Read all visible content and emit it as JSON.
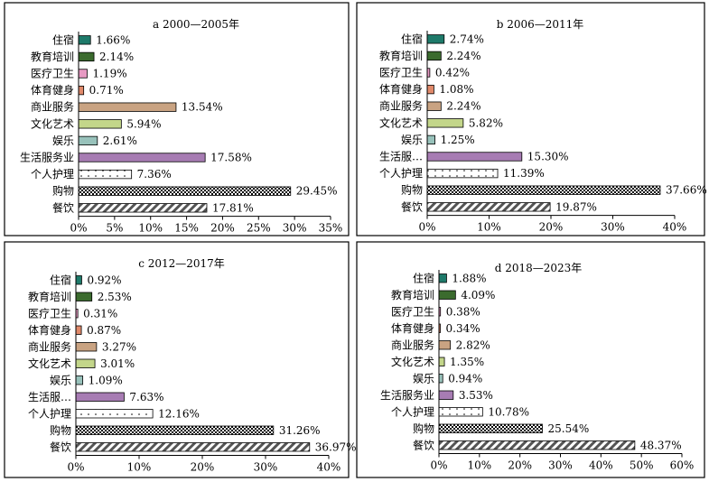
{
  "colors": {
    "住宿": "#1e7a6a",
    "教育培训": "#3b6b2e",
    "医疗卫生": "#e79ac3",
    "体育健身": "#e0896a",
    "商业服务": "#c9a382",
    "文化艺术": "#c3d68a",
    "娱乐": "#98c2bb",
    "生活服务业": "#a77cb3",
    "个人护理": "dots",
    "购物": "checker",
    "餐饮": "hatch"
  },
  "chart_data": [
    {
      "type": "bar",
      "title": "a 2000—2005年",
      "categories": [
        "住宿",
        "教育培训",
        "医疗卫生",
        "体育健身",
        "商业服务",
        "文化艺术",
        "娱乐",
        "生活服务业",
        "个人护理",
        "购物",
        "餐饮"
      ],
      "labels": [
        "住宿",
        "教育培训",
        "医疗卫生",
        "体育健身",
        "商业服务",
        "文化艺术",
        "娱乐",
        "生活服务业",
        "个人护理",
        "购物",
        "餐饮"
      ],
      "values": [
        1.66,
        2.14,
        1.19,
        0.71,
        13.54,
        5.94,
        2.61,
        17.58,
        7.36,
        29.45,
        17.81
      ],
      "value_labels": [
        "1.66%",
        "2.14%",
        "1.19%",
        "0.71%",
        "13.54%",
        "5.94%",
        "2.61%",
        "17.58%",
        "7.36%",
        "29.45%",
        "17.81%"
      ],
      "xlim": [
        0,
        35
      ],
      "ticks": [
        "0%",
        "5%",
        "10%",
        "15%",
        "20%",
        "25%",
        "30%",
        "35%"
      ]
    },
    {
      "type": "bar",
      "title": "b 2006—2011年",
      "categories": [
        "住宿",
        "教育培训",
        "医疗卫生",
        "体育健身",
        "商业服务",
        "文化艺术",
        "娱乐",
        "生活服务业",
        "个人护理",
        "购物",
        "餐饮"
      ],
      "labels": [
        "住宿",
        "教育培训",
        "医疗卫生",
        "体育健身",
        "商业服务",
        "文化艺术",
        "娱乐",
        "生活服…",
        "个人护理",
        "购物",
        "餐饮"
      ],
      "values": [
        2.74,
        2.24,
        0.42,
        1.08,
        2.24,
        5.82,
        1.25,
        15.3,
        11.39,
        37.66,
        19.87
      ],
      "value_labels": [
        "2.74%",
        "2.24%",
        "0.42%",
        "1.08%",
        "2.24%",
        "5.82%",
        "1.25%",
        "15.30%",
        "11.39%",
        "37.66%",
        "19.87%"
      ],
      "xlim": [
        0,
        40
      ],
      "ticks": [
        "0%",
        "10%",
        "20%",
        "30%",
        "40%"
      ]
    },
    {
      "type": "bar",
      "title": "c 2012—2017年",
      "categories": [
        "住宿",
        "教育培训",
        "医疗卫生",
        "体育健身",
        "商业服务",
        "文化艺术",
        "娱乐",
        "生活服务业",
        "个人护理",
        "购物",
        "餐饮"
      ],
      "labels": [
        "住宿",
        "教育培训",
        "医疗卫生",
        "体育健身",
        "商业服务",
        "文化艺术",
        "娱乐",
        "生活服…",
        "个人护理",
        "购物",
        "餐饮"
      ],
      "values": [
        0.92,
        2.53,
        0.31,
        0.87,
        3.27,
        3.01,
        1.09,
        7.63,
        12.16,
        31.26,
        36.97
      ],
      "value_labels": [
        "0.92%",
        "2.53%",
        "0.31%",
        "0.87%",
        "3.27%",
        "3.01%",
        "1.09%",
        "7.63%",
        "12.16%",
        "31.26%",
        "36.97%"
      ],
      "xlim": [
        0,
        40
      ],
      "ticks": [
        "0%",
        "10%",
        "20%",
        "30%",
        "40%"
      ]
    },
    {
      "type": "bar",
      "title": "d 2018—2023年",
      "categories": [
        "住宿",
        "教育培训",
        "医疗卫生",
        "体育健身",
        "商业服务",
        "文化艺术",
        "娱乐",
        "生活服务业",
        "个人护理",
        "购物",
        "餐饮"
      ],
      "labels": [
        "住宿",
        "教育培训",
        "医疗卫生",
        "体育健身",
        "商业服务",
        "文化艺术",
        "娱乐",
        "生活服务业",
        "个人护理",
        "购物",
        "餐饮"
      ],
      "values": [
        1.88,
        4.09,
        0.38,
        0.34,
        2.82,
        1.35,
        0.94,
        3.53,
        10.78,
        25.54,
        48.37
      ],
      "value_labels": [
        "1.88%",
        "4.09%",
        "0.38%",
        "0.34%",
        "2.82%",
        "1.35%",
        "0.94%",
        "3.53%",
        "10.78%",
        "25.54%",
        "48.37%"
      ],
      "xlim": [
        0,
        60
      ],
      "ticks": [
        "0%",
        "10%",
        "20%",
        "30%",
        "40%",
        "50%",
        "60%"
      ]
    }
  ]
}
